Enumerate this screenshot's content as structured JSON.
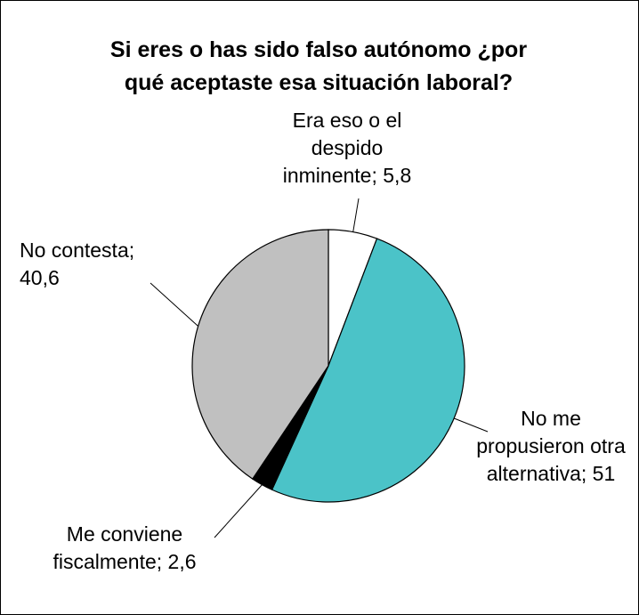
{
  "chart_data": {
    "type": "pie",
    "title": [
      "Si eres o has sido falso autónomo ¿por",
      "qué aceptaste esa situación laboral?"
    ],
    "slices": [
      {
        "label_lines": [
          "Era eso o el",
          "despido",
          "inminente; 5,8"
        ],
        "value": 5.8,
        "color": "#ffffff"
      },
      {
        "label_lines": [
          "No me",
          "propusieron otra",
          "alternativa; 51"
        ],
        "value": 51,
        "color": "#4bc3c8"
      },
      {
        "label_lines": [
          "Me conviene",
          "fiscalmente; 2,6"
        ],
        "value": 2.6,
        "color": "#000000"
      },
      {
        "label_lines": [
          "No contesta;",
          "40,6"
        ],
        "value": 40.6,
        "color": "#c0c0c0"
      }
    ],
    "start_angle": "top",
    "direction": "clockwise",
    "legend": "none"
  }
}
